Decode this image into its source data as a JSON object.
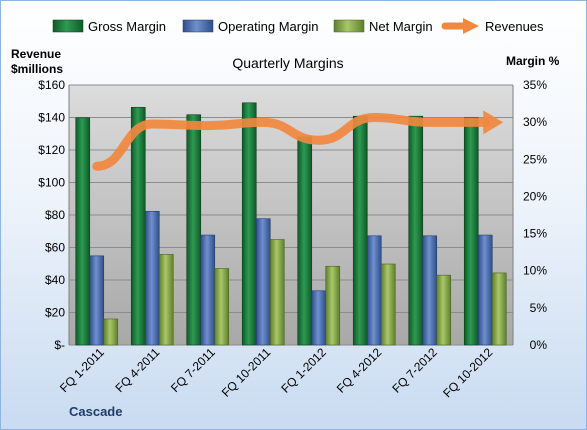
{
  "chart_data": {
    "type": "bar",
    "title": "Quarterly Margins",
    "categories": [
      "FQ 1-2011",
      "FQ 4-2011",
      "FQ 7-2011",
      "FQ 10-2011",
      "FQ 1-2012",
      "FQ 4-2012",
      "FQ 7-2012",
      "FQ 10-2012"
    ],
    "series": [
      {
        "name": "Gross Margin",
        "axis": "right",
        "values": [
          30.6,
          32.0,
          31.0,
          32.6,
          28.0,
          30.8,
          30.8,
          30.6
        ]
      },
      {
        "name": "Operating Margin",
        "axis": "right",
        "values": [
          12.0,
          18.0,
          14.8,
          17.0,
          7.3,
          14.7,
          14.7,
          14.8
        ]
      },
      {
        "name": "Net Margin",
        "axis": "right",
        "values": [
          3.5,
          12.2,
          10.3,
          14.2,
          10.6,
          10.9,
          9.4,
          9.7
        ]
      },
      {
        "name": "Revenues",
        "type": "line",
        "axis": "left",
        "values": [
          110,
          136,
          135,
          137,
          126,
          140,
          137,
          137
        ]
      }
    ],
    "ylabel_left": [
      "Revenue",
      "$millions"
    ],
    "ylabel_right": "Margin %",
    "ylim_left": [
      0,
      160
    ],
    "ylim_right": [
      0,
      35
    ],
    "yticks_left": [
      "$-",
      "$20",
      "$40",
      "$60",
      "$80",
      "$100",
      "$120",
      "$140",
      "$160"
    ],
    "yticks_right": [
      "0%",
      "5%",
      "10%",
      "15%",
      "20%",
      "25%",
      "30%",
      "35%"
    ],
    "grid": true,
    "legend_position": "top",
    "colors": {
      "gross_margin": "#1e7a3c",
      "operating_margin": "#4a6eb0",
      "net_margin": "#8aab48",
      "revenues": "#f0883e"
    }
  },
  "brand_label": "Cascade"
}
